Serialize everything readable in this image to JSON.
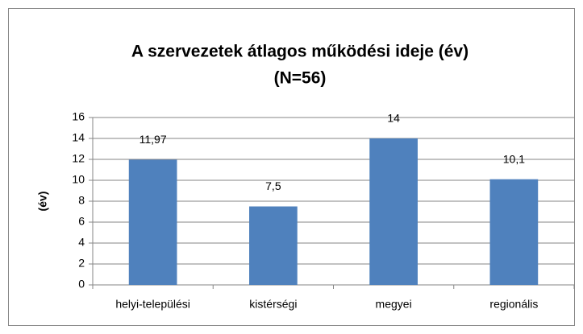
{
  "chart_data": {
    "type": "bar",
    "title": [
      "A szervezetek átlagos működési ideje  (év)",
      "(N=56)"
    ],
    "y_label": "(év)",
    "categories": [
      "helyi-települési",
      "kistérségi",
      "megyei",
      "regionális"
    ],
    "values": [
      11.97,
      7.5,
      14,
      10.1
    ],
    "value_labels": [
      "11,97",
      "7,5",
      "14",
      "10,1"
    ],
    "color": "#4f81bd",
    "ylim": [
      0,
      16
    ],
    "yticks": [
      0,
      2,
      4,
      6,
      8,
      10,
      12,
      14,
      16
    ],
    "grid": true
  }
}
